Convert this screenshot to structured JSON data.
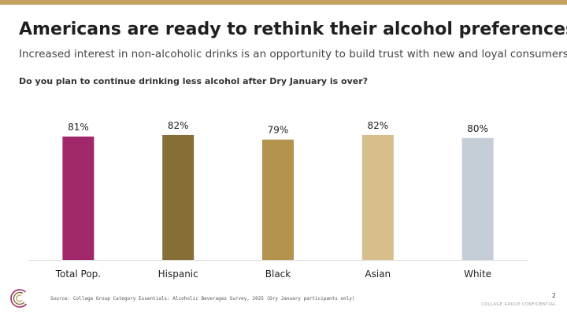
{
  "slide": {
    "title": "Americans are ready to rethink their alcohol preferences",
    "subtitle": "Increased interest in non-alcoholic drinks is an opportunity to build trust with new and loyal consumers",
    "question": "Do you plan to continue drinking less alcohol after Dry January is over?",
    "source": "Source: Collage Group Category Essentials: Alcoholic Beverages Survey, 2025 (Dry January participants only)",
    "page_number": "2",
    "confidential": "COLLAGE GROUP CONFIDENTIAL"
  },
  "colors": {
    "accent_bar": "#c2a25c"
  },
  "chart_data": {
    "type": "bar",
    "categories": [
      "Total Pop.",
      "Hispanic",
      "Black",
      "Asian",
      "White"
    ],
    "values": [
      81,
      82,
      79,
      82,
      80
    ],
    "data_labels": [
      "81%",
      "82%",
      "79%",
      "82%",
      "80%"
    ],
    "colors": [
      "#a1286a",
      "#866f37",
      "#b3934e",
      "#d6bf8a",
      "#c5cdd6"
    ],
    "title": "",
    "xlabel": "",
    "ylabel": "",
    "ylim": [
      0,
      100
    ],
    "grid": false,
    "legend": "none"
  }
}
